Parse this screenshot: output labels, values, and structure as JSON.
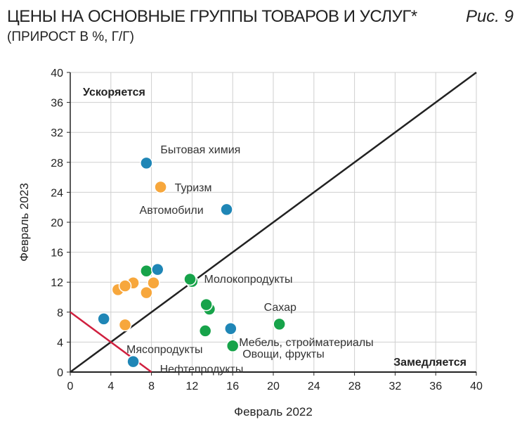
{
  "header": {
    "title": "ЦЕНЫ НА ОСНОВНЫЕ ГРУППЫ ТОВАРОВ И УСЛУГ*",
    "subtitle": "(ПРИРОСТ В %, Г/Г)",
    "figure": "Рис. 9"
  },
  "chart_data": {
    "type": "scatter",
    "xlabel": "Февраль 2022",
    "ylabel": "Февраль 2023",
    "xlim": [
      0,
      40
    ],
    "ylim": [
      0,
      40
    ],
    "xticks": [
      0,
      4,
      8,
      12,
      16,
      20,
      24,
      28,
      32,
      36,
      40
    ],
    "yticks": [
      0,
      4,
      8,
      12,
      16,
      20,
      24,
      28,
      32,
      36,
      40
    ],
    "grid": true,
    "colors": {
      "blue": "#1f86b6",
      "green": "#17a34a",
      "orange": "#f7a73c",
      "diagonal": "#222222",
      "redline": "#d0203f"
    },
    "annotations": {
      "top_left": "Ускоряется",
      "bottom_right": "Замедляется"
    },
    "lines": [
      {
        "kind": "diagonal",
        "points": [
          [
            0,
            0
          ],
          [
            40,
            40
          ]
        ]
      },
      {
        "kind": "red",
        "points": [
          [
            0,
            8
          ],
          [
            8,
            0
          ]
        ]
      }
    ],
    "points": [
      {
        "x": 7.5,
        "y": 27.9,
        "color": "blue",
        "label": "Бытовая химия"
      },
      {
        "x": 8.9,
        "y": 24.7,
        "color": "orange",
        "label": "Туризм"
      },
      {
        "x": 15.4,
        "y": 21.7,
        "color": "blue",
        "label": "Автомобили"
      },
      {
        "x": 7.5,
        "y": 13.5,
        "color": "green"
      },
      {
        "x": 8.6,
        "y": 13.7,
        "color": "blue"
      },
      {
        "x": 4.7,
        "y": 11.0,
        "color": "orange"
      },
      {
        "x": 6.2,
        "y": 11.9,
        "color": "orange"
      },
      {
        "x": 5.4,
        "y": 11.5,
        "color": "orange"
      },
      {
        "x": 7.5,
        "y": 10.6,
        "color": "orange"
      },
      {
        "x": 8.2,
        "y": 11.9,
        "color": "orange"
      },
      {
        "x": 12.0,
        "y": 12.1,
        "color": "green"
      },
      {
        "x": 11.8,
        "y": 12.4,
        "color": "green",
        "label": "Молокопродукты"
      },
      {
        "x": 3.3,
        "y": 7.1,
        "color": "blue"
      },
      {
        "x": 5.4,
        "y": 6.3,
        "color": "orange"
      },
      {
        "x": 13.7,
        "y": 8.4,
        "color": "green"
      },
      {
        "x": 13.4,
        "y": 9.0,
        "color": "green"
      },
      {
        "x": 13.3,
        "y": 5.5,
        "color": "green"
      },
      {
        "x": 15.8,
        "y": 5.8,
        "color": "blue",
        "label": "Мебель, стройматериалы"
      },
      {
        "x": 20.6,
        "y": 6.4,
        "color": "green",
        "label": "Сахар"
      },
      {
        "x": 16.0,
        "y": 3.5,
        "color": "green",
        "label": "Овощи, фрукты"
      },
      {
        "x": 6.2,
        "y": 1.4,
        "color": "blue",
        "label": "Нефтепродукты"
      }
    ],
    "extra_labels": [
      "Мясопродукты"
    ]
  }
}
